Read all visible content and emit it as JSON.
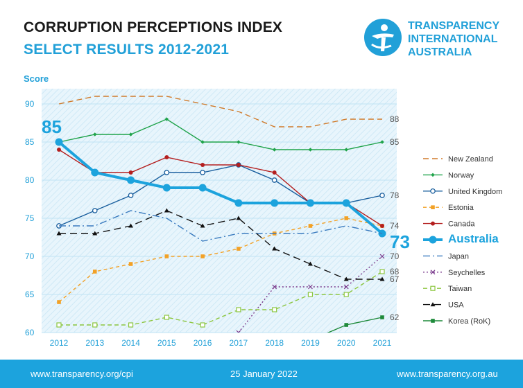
{
  "header": {
    "title": "CORRUPTION PERCEPTIONS INDEX",
    "subtitle": "SELECT RESULTS 2012-2021"
  },
  "logo": {
    "lines": [
      "TRANSPARENCY",
      "INTERNATIONAL",
      "AUSTRALIA"
    ],
    "icon": "transparency-international-figure-icon",
    "color": "#21a0d8"
  },
  "footer": {
    "left": "www.transparency.org/cpi",
    "center": "25 January 2022",
    "right": "www.transparency.org.au",
    "background": "#1ca3dd"
  },
  "chart_data": {
    "type": "line",
    "ylabel": "Score",
    "ylim": [
      60,
      92
    ],
    "yticks": [
      60,
      65,
      70,
      75,
      80,
      85,
      90
    ],
    "x": [
      "2012",
      "2013",
      "2014",
      "2015",
      "2016",
      "2017",
      "2018",
      "2019",
      "2020",
      "2021"
    ],
    "grid": true,
    "legend_position": "right",
    "series": [
      {
        "name": "New Zealand",
        "values": [
          90,
          91,
          91,
          91,
          90,
          89,
          87,
          87,
          88,
          88
        ],
        "end_label": "88",
        "color": "#d07a2a",
        "dash": "8,5",
        "marker": "none"
      },
      {
        "name": "Norway",
        "values": [
          85,
          86,
          86,
          88,
          85,
          85,
          84,
          84,
          84,
          85
        ],
        "end_label": "85",
        "color": "#1fa34a",
        "dash": "",
        "marker": "diamond"
      },
      {
        "name": "United Kingdom",
        "values": [
          74,
          76,
          78,
          81,
          81,
          82,
          80,
          77,
          77,
          78
        ],
        "end_label": "78",
        "color": "#1a5f9e",
        "dash": "",
        "marker": "circle-open"
      },
      {
        "name": "Estonia",
        "values": [
          64,
          68,
          69,
          70,
          70,
          71,
          73,
          74,
          75,
          74
        ],
        "end_label": "74",
        "color": "#f2a126",
        "dash": "5,4",
        "marker": "square"
      },
      {
        "name": "Canada",
        "values": [
          84,
          81,
          81,
          83,
          82,
          82,
          81,
          77,
          77,
          74
        ],
        "end_label": "",
        "color": "#b41f1f",
        "dash": "",
        "marker": "circle"
      },
      {
        "name": "Australia",
        "values": [
          85,
          81,
          80,
          79,
          79,
          77,
          77,
          77,
          77,
          73
        ],
        "end_label": "",
        "color": "#1ca3dd",
        "dash": "",
        "marker": "circle-big",
        "emphasis": true,
        "start_label": "85",
        "final_label": "73"
      },
      {
        "name": "Japan",
        "values": [
          74,
          74,
          76,
          75,
          72,
          73,
          73,
          73,
          74,
          73
        ],
        "end_label": "",
        "color": "#3a7bbf",
        "dash": "10,4,2,4",
        "marker": "none"
      },
      {
        "name": "Seychelles",
        "values": [
          null,
          null,
          null,
          null,
          null,
          60,
          66,
          66,
          66,
          70
        ],
        "end_label": "70",
        "color": "#7a3a8c",
        "dash": "2,3",
        "marker": "x"
      },
      {
        "name": "Taiwan",
        "values": [
          61,
          61,
          61,
          62,
          61,
          63,
          63,
          65,
          65,
          68
        ],
        "end_label": "68",
        "color": "#8cc63f",
        "dash": "6,4",
        "marker": "square-open"
      },
      {
        "name": "USA",
        "values": [
          73,
          73,
          74,
          76,
          74,
          75,
          71,
          69,
          67,
          67
        ],
        "end_label": "67",
        "color": "#111111",
        "dash": "10,6",
        "marker": "triangle"
      },
      {
        "name": "Korea (RoK)",
        "values": [
          null,
          null,
          null,
          null,
          null,
          null,
          null,
          59,
          61,
          62
        ],
        "end_label": "62",
        "color": "#1e8a3a",
        "dash": "",
        "marker": "square"
      }
    ]
  }
}
